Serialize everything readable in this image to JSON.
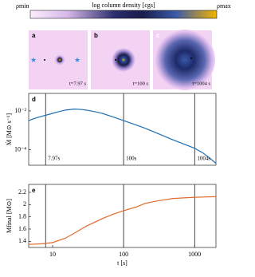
{
  "colorbar": {
    "label": "log column density [cgs]",
    "min_label": "ρmin",
    "max_label": "ρmax"
  },
  "panels": [
    {
      "label": "a",
      "time": "t=7.97 s"
    },
    {
      "label": "b",
      "time": "t=100 s"
    },
    {
      "label": "c",
      "time": "t=1004 s"
    }
  ],
  "chart_data": [
    {
      "type": "line",
      "panel_label": "d",
      "ylabel": "Ṁ [M⊙ s⁻¹]",
      "log_x": true,
      "log_y": true,
      "x": [
        4.6,
        5,
        6,
        7,
        8,
        10,
        12,
        15,
        20,
        25,
        30,
        40,
        50,
        70,
        100,
        150,
        200,
        300,
        400,
        500,
        700,
        1000,
        1300,
        1600,
        2000
      ],
      "series": [
        {
          "color": "#1f6fb0",
          "values": [
            0.0032,
            0.0036,
            0.0045,
            0.0053,
            0.006,
            0.0075,
            0.009,
            0.011,
            0.0125,
            0.012,
            0.011,
            0.009,
            0.0075,
            0.005,
            0.0032,
            0.0019,
            0.0013,
            0.0007,
            0.00045,
            0.00032,
            0.0002,
            0.00012,
            7e-05,
            4e-05,
            2e-05
          ]
        }
      ],
      "xlim": [
        4.6,
        2000
      ],
      "ylim": [
        1.6e-05,
        0.08
      ],
      "yticks": [
        {
          "value": 0.0001,
          "label": "10⁻⁴"
        },
        {
          "value": 0.01,
          "label": "10⁻²"
        }
      ],
      "vlines": [
        7.97,
        100,
        1004
      ],
      "vline_labels": [
        "7.97s",
        "100s",
        "1004s"
      ]
    },
    {
      "type": "line",
      "panel_label": "e",
      "ylabel": "Mfinal [M⊙]",
      "xlabel": "t [s]",
      "log_x": true,
      "log_y": false,
      "x": [
        4.6,
        7,
        10,
        15,
        20,
        30,
        50,
        70,
        100,
        150,
        200,
        300,
        500,
        1000,
        2000
      ],
      "series": [
        {
          "color": "#e06a2c",
          "values": [
            1.35,
            1.36,
            1.38,
            1.45,
            1.53,
            1.65,
            1.77,
            1.84,
            1.9,
            1.96,
            2.02,
            2.06,
            2.1,
            2.12,
            2.13
          ]
        }
      ],
      "xlim": [
        4.6,
        2000
      ],
      "ylim": [
        1.3,
        2.33
      ],
      "xticks": [
        10,
        100,
        1000
      ],
      "yticks": [
        1.4,
        1.6,
        1.8,
        2,
        2.2
      ],
      "vlines": [
        7.97,
        100,
        1004
      ]
    }
  ]
}
